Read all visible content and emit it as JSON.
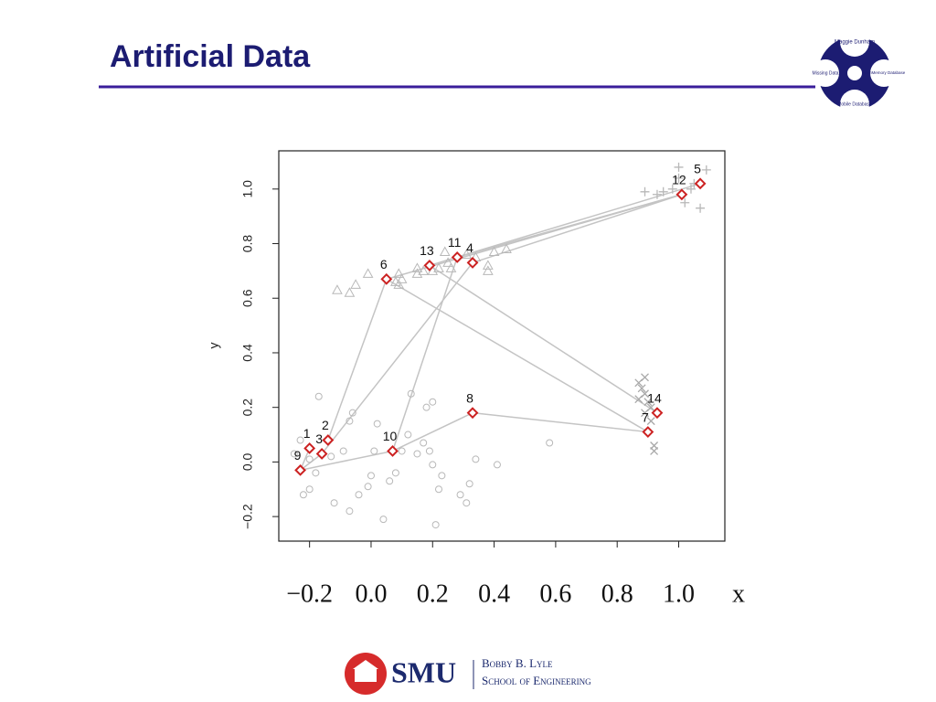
{
  "slide": {
    "title": "Artificial Data",
    "logo": [
      "Maggie Dunham",
      "Missing Data",
      "MainMemory Database",
      "Mobile Database"
    ],
    "footer": {
      "brand": "SMU",
      "line1": "Bobby B. Lyle",
      "line2": "School of Engineering"
    }
  },
  "chart_data": {
    "type": "scatter",
    "xlabel": "x",
    "ylabel": "y",
    "xlim": [
      -0.3,
      1.15
    ],
    "ylim": [
      -0.29,
      1.14
    ],
    "xticks": [
      {
        "value": -0.2,
        "label": "−0.2"
      },
      {
        "value": 0,
        "label": "0.0"
      },
      0.2,
      0.4,
      0.6,
      0.8,
      {
        "value": 1,
        "label": "1.0"
      }
    ],
    "yticks": [
      {
        "value": -0.2,
        "label": "−0.2"
      },
      {
        "value": 0,
        "label": "0.0"
      },
      0.2,
      0.4,
      0.6,
      0.8,
      {
        "value": 1,
        "label": "1.0"
      }
    ],
    "series": [
      {
        "marker": "circle",
        "color": "#b8b8b8",
        "x": [
          -0.17,
          -0.23,
          -0.25,
          -0.2,
          -0.22,
          -0.2,
          -0.13,
          -0.09,
          -0.07,
          -0.06,
          -0.04,
          -0.01,
          0.01,
          0.02,
          0,
          0.04,
          0.08,
          0.1,
          0.12,
          0.13,
          0.17,
          0.18,
          0.2,
          0.19,
          0.2,
          0.22,
          0.21,
          0.23,
          0.29,
          0.31,
          0.32,
          0.34,
          0.41,
          0.58,
          -0.12,
          -0.07,
          -0.18,
          0.06,
          0.15
        ],
        "values": [
          0.24,
          0.08,
          0.03,
          0.01,
          -0.12,
          -0.1,
          0.02,
          0.04,
          0.15,
          0.18,
          -0.12,
          -0.09,
          0.04,
          0.14,
          -0.05,
          -0.21,
          -0.04,
          0.04,
          0.1,
          0.25,
          0.07,
          0.2,
          0.22,
          0.04,
          -0.01,
          -0.1,
          -0.23,
          -0.05,
          -0.12,
          -0.15,
          -0.08,
          0.01,
          -0.01,
          0.07,
          -0.15,
          -0.18,
          -0.04,
          -0.07,
          0.03
        ]
      },
      {
        "marker": "triangle",
        "color": "#b8b8b8",
        "x": [
          -0.11,
          -0.07,
          -0.05,
          -0.01,
          0.08,
          0.09,
          0.1,
          0.15,
          0.15,
          0.17,
          0.2,
          0.22,
          0.24,
          0.25,
          0.26,
          0.31,
          0.34,
          0.38,
          0.38,
          0.4,
          0.44,
          0.09
        ],
        "values": [
          0.63,
          0.62,
          0.65,
          0.69,
          0.66,
          0.69,
          0.67,
          0.69,
          0.71,
          0.7,
          0.7,
          0.71,
          0.77,
          0.73,
          0.71,
          0.76,
          0.75,
          0.72,
          0.7,
          0.77,
          0.78,
          0.65
        ]
      },
      {
        "marker": "plus",
        "color": "#b8b8b8",
        "x": [
          0.89,
          0.93,
          0.95,
          0.98,
          1,
          1,
          1.04,
          1.07,
          1.09,
          1.02,
          1.05
        ],
        "values": [
          0.99,
          0.98,
          0.99,
          1,
          1.08,
          1.04,
          1,
          0.93,
          1.07,
          0.95,
          1.02
        ]
      },
      {
        "marker": "cross",
        "color": "#a8a8a8",
        "x": [
          0.87,
          0.89,
          0.88,
          0.87,
          0.89,
          0.91,
          0.89,
          0.91,
          0.92,
          0.92,
          0.9
        ],
        "values": [
          0.29,
          0.31,
          0.27,
          0.23,
          0.25,
          0.2,
          0.18,
          0.15,
          0.06,
          0.04,
          0.22
        ]
      },
      {
        "marker": "diamond",
        "color": "#cc2222",
        "x": [
          -0.2,
          -0.14,
          -0.16,
          0.33,
          1.07,
          0.05,
          0.9,
          0.33,
          -0.23,
          0.07,
          0.28,
          1.01,
          0.19,
          0.93
        ],
        "values": [
          0.05,
          0.08,
          0.03,
          0.73,
          1.02,
          0.67,
          0.11,
          0.18,
          -0.03,
          0.04,
          0.75,
          0.98,
          0.72,
          0.18
        ],
        "labels": [
          "1",
          "2",
          "3",
          "4",
          "5",
          "6",
          "7",
          "8",
          "9",
          "10",
          "11",
          "12",
          "13",
          "14"
        ]
      }
    ],
    "link_color": "#c4c4c4",
    "links": [
      [
        8,
        0
      ],
      [
        8,
        2
      ],
      [
        8,
        9
      ],
      [
        9,
        7
      ],
      [
        7,
        6
      ],
      [
        1,
        5
      ],
      [
        9,
        10
      ],
      [
        2,
        3
      ],
      [
        5,
        6
      ],
      [
        12,
        13
      ],
      [
        10,
        11
      ],
      [
        3,
        11
      ],
      [
        12,
        4
      ],
      [
        5,
        11
      ]
    ]
  }
}
